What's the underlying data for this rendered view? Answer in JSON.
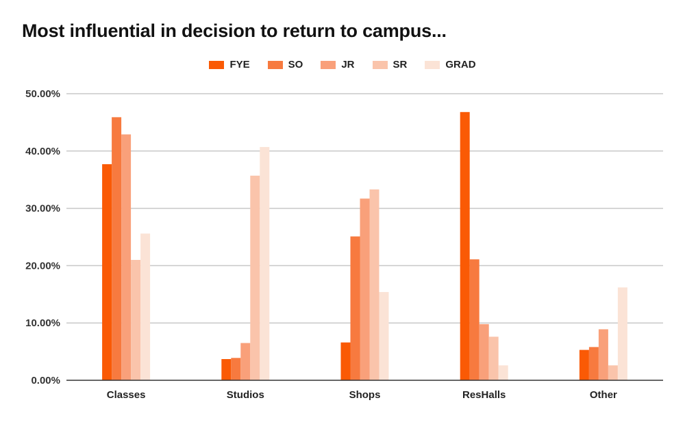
{
  "title": "Most influential in decision to return to campus...",
  "legend_position": "top-center",
  "chart_data": {
    "type": "bar",
    "title": "Most influential in decision to return to campus...",
    "xlabel": "",
    "ylabel": "",
    "ylim": [
      0,
      50
    ],
    "yticks": [
      "0.00%",
      "10.00%",
      "20.00%",
      "30.00%",
      "40.00%",
      "50.00%"
    ],
    "grid": true,
    "categories": [
      "Classes",
      "Studios",
      "Shops",
      "ResHalls",
      "Other"
    ],
    "series": [
      {
        "name": "FYE",
        "color": "#fa5a05",
        "values": [
          37.7,
          3.7,
          6.6,
          46.8,
          5.3
        ]
      },
      {
        "name": "SO",
        "color": "#f77a3f",
        "values": [
          45.9,
          3.9,
          25.1,
          21.1,
          5.8
        ]
      },
      {
        "name": "JR",
        "color": "#f9a07a",
        "values": [
          42.9,
          6.5,
          31.7,
          9.8,
          8.9
        ]
      },
      {
        "name": "SR",
        "color": "#fac4ab",
        "values": [
          21.0,
          35.7,
          33.3,
          7.6,
          2.6
        ]
      },
      {
        "name": "GRAD",
        "color": "#fbe3d6",
        "values": [
          25.6,
          40.7,
          15.4,
          2.6,
          16.2
        ]
      }
    ]
  }
}
